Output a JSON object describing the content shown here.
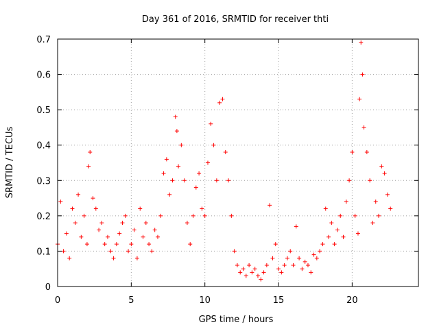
{
  "chart_data": {
    "type": "scatter",
    "title": "Day 361 of 2016, SRMTID for receiver thti",
    "xlabel": "GPS time / hours",
    "ylabel": "SRMTID / TECUs",
    "xlim": [
      0,
      24.5
    ],
    "ylim": [
      0,
      0.7
    ],
    "xticks": [
      0,
      5,
      10,
      15,
      20
    ],
    "yticks": [
      0,
      0.1,
      0.2,
      0.3,
      0.4,
      0.5,
      0.6,
      0.7
    ],
    "xtick_labels": [
      "0",
      "5",
      "10",
      "15",
      "20"
    ],
    "ytick_labels": [
      "0",
      "0.1",
      "0.2",
      "0.3",
      "0.4",
      "0.5",
      "0.6",
      "0.7"
    ],
    "grid": true,
    "marker": "+",
    "color": "#ff0000",
    "series": [
      {
        "name": "SRMTID",
        "x": [
          0.0,
          0.2,
          0.4,
          0.6,
          0.8,
          1.0,
          1.2,
          1.4,
          1.6,
          1.8,
          2.0,
          2.1,
          2.2,
          2.4,
          2.6,
          2.8,
          3.0,
          3.2,
          3.4,
          3.6,
          3.8,
          4.0,
          4.2,
          4.4,
          4.6,
          4.8,
          5.0,
          5.2,
          5.4,
          5.6,
          5.8,
          6.0,
          6.2,
          6.4,
          6.6,
          6.8,
          7.0,
          7.2,
          7.4,
          7.6,
          7.8,
          8.0,
          8.1,
          8.2,
          8.4,
          8.6,
          8.8,
          9.0,
          9.2,
          9.4,
          9.6,
          9.8,
          10.0,
          10.2,
          10.4,
          10.6,
          10.8,
          11.0,
          11.2,
          11.4,
          11.6,
          11.8,
          12.0,
          12.2,
          12.4,
          12.6,
          12.8,
          13.0,
          13.2,
          13.4,
          13.6,
          13.8,
          14.0,
          14.2,
          14.4,
          14.6,
          14.8,
          15.0,
          15.2,
          15.4,
          15.6,
          15.8,
          16.0,
          16.2,
          16.4,
          16.6,
          16.8,
          17.0,
          17.2,
          17.4,
          17.6,
          17.8,
          18.0,
          18.2,
          18.4,
          18.6,
          18.8,
          19.0,
          19.2,
          19.4,
          19.6,
          19.8,
          20.0,
          20.2,
          20.4,
          20.5,
          20.6,
          20.7,
          20.8,
          21.0,
          21.2,
          21.4,
          21.6,
          21.8,
          22.0,
          22.2,
          22.4,
          22.6
        ],
        "y": [
          0.12,
          0.24,
          0.1,
          0.15,
          0.08,
          0.22,
          0.18,
          0.26,
          0.14,
          0.2,
          0.12,
          0.34,
          0.38,
          0.25,
          0.22,
          0.16,
          0.18,
          0.12,
          0.14,
          0.1,
          0.08,
          0.12,
          0.15,
          0.18,
          0.2,
          0.1,
          0.12,
          0.16,
          0.08,
          0.22,
          0.14,
          0.18,
          0.12,
          0.1,
          0.16,
          0.14,
          0.2,
          0.32,
          0.36,
          0.26,
          0.3,
          0.48,
          0.44,
          0.34,
          0.4,
          0.3,
          0.18,
          0.12,
          0.2,
          0.28,
          0.32,
          0.22,
          0.2,
          0.35,
          0.46,
          0.4,
          0.3,
          0.52,
          0.53,
          0.38,
          0.3,
          0.2,
          0.1,
          0.06,
          0.04,
          0.05,
          0.03,
          0.06,
          0.04,
          0.05,
          0.03,
          0.02,
          0.04,
          0.06,
          0.23,
          0.08,
          0.12,
          0.05,
          0.04,
          0.06,
          0.08,
          0.1,
          0.06,
          0.17,
          0.08,
          0.05,
          0.07,
          0.06,
          0.04,
          0.09,
          0.08,
          0.1,
          0.12,
          0.22,
          0.14,
          0.18,
          0.12,
          0.16,
          0.2,
          0.14,
          0.24,
          0.3,
          0.38,
          0.2,
          0.15,
          0.53,
          0.69,
          0.6,
          0.45,
          0.38,
          0.3,
          0.18,
          0.24,
          0.2,
          0.34,
          0.32,
          0.26,
          0.22
        ]
      }
    ]
  }
}
